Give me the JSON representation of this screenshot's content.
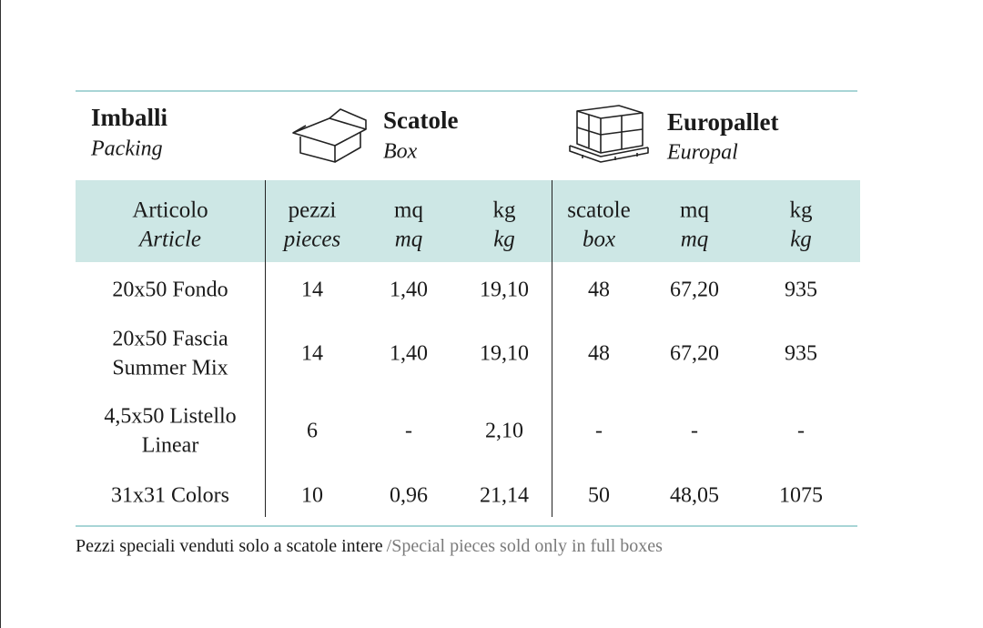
{
  "header": {
    "sections": [
      {
        "title": "Imballi",
        "subtitle": "Packing"
      },
      {
        "title": "Scatole",
        "subtitle": "Box"
      },
      {
        "title": "Europallet",
        "subtitle": "Europal"
      }
    ]
  },
  "table": {
    "columns": [
      {
        "it": "Articolo",
        "en": "Article"
      },
      {
        "it": "pezzi",
        "en": "pieces"
      },
      {
        "it": "mq",
        "en": "mq"
      },
      {
        "it": "kg",
        "en": "kg"
      },
      {
        "it": "scatole",
        "en": "box"
      },
      {
        "it": "mq",
        "en": "mq"
      },
      {
        "it": "kg",
        "en": "kg"
      }
    ],
    "rows": [
      {
        "article": [
          "20x50 Fondo"
        ],
        "cells": [
          "14",
          "1,40",
          "19,10",
          "48",
          "67,20",
          "935"
        ]
      },
      {
        "article": [
          "20x50 Fascia",
          "Summer Mix"
        ],
        "cells": [
          "14",
          "1,40",
          "19,10",
          "48",
          "67,20",
          "935"
        ]
      },
      {
        "article": [
          "4,5x50 Listello",
          "Linear"
        ],
        "cells": [
          "6",
          "-",
          "2,10",
          "-",
          "-",
          "-"
        ]
      },
      {
        "article": [
          "31x31 Colors"
        ],
        "cells": [
          "10",
          "0,96",
          "21,14",
          "50",
          "48,05",
          "1075"
        ]
      }
    ]
  },
  "footer": {
    "note": "Pezzi speciali venduti solo a scatole intere",
    "note_en": "/Special pieces sold only in full boxes"
  }
}
